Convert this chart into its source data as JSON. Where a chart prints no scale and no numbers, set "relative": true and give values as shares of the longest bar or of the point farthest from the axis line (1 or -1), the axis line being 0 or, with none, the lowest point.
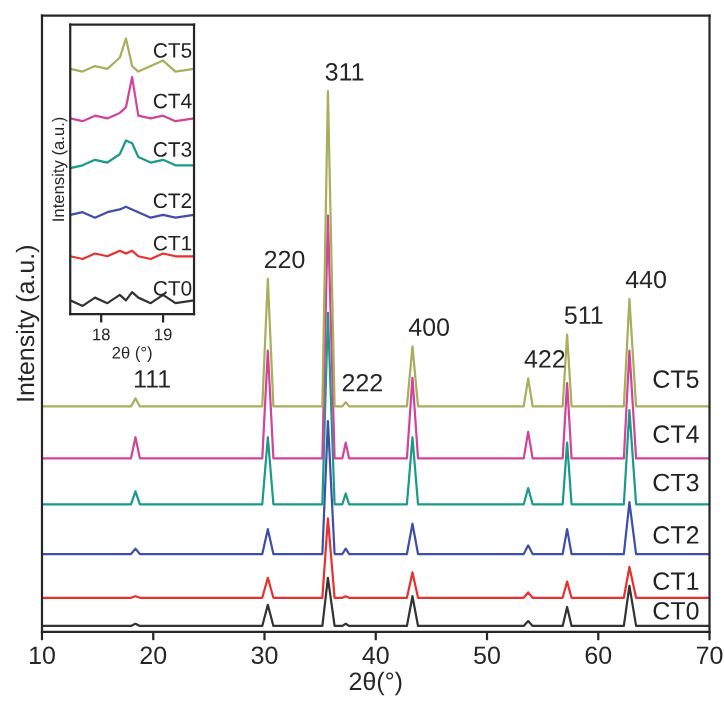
{
  "chart_data": [
    {
      "type": "line",
      "relative": true,
      "xlabel": "2θ(°)",
      "ylabel": "Intensity (a.u.)",
      "xlim": [
        10,
        70
      ],
      "xticks": [
        10,
        20,
        30,
        40,
        50,
        60,
        70
      ],
      "tick_labels": "x",
      "x": [
        10,
        18.0,
        18.4,
        18.8,
        29.8,
        30.3,
        30.8,
        35.2,
        35.7,
        36.3,
        37.0,
        37.3,
        37.6,
        42.8,
        43.3,
        43.8,
        53.3,
        53.7,
        54.1,
        56.8,
        57.2,
        57.6,
        62.3,
        62.8,
        63.4,
        70
      ],
      "series": [
        {
          "name": "CT0",
          "color": "#333333",
          "values": [
            0.011,
            0.011,
            0.015,
            0.011,
            0.011,
            0.05,
            0.011,
            0.011,
            0.1,
            0.011,
            0.011,
            0.015,
            0.011,
            0.011,
            0.066,
            0.011,
            0.011,
            0.02,
            0.011,
            0.011,
            0.046,
            0.011,
            0.011,
            0.085,
            0.011,
            0.011
          ]
        },
        {
          "name": "CT1",
          "color": "#e8302e",
          "values": [
            0.063,
            0.063,
            0.066,
            0.063,
            0.063,
            0.1,
            0.063,
            0.063,
            0.21,
            0.063,
            0.063,
            0.066,
            0.063,
            0.063,
            0.11,
            0.063,
            0.063,
            0.073,
            0.063,
            0.063,
            0.093,
            0.063,
            0.063,
            0.12,
            0.063,
            0.063
          ]
        },
        {
          "name": "CT2",
          "color": "#3e4fa8",
          "values": [
            0.144,
            0.144,
            0.154,
            0.144,
            0.144,
            0.19,
            0.144,
            0.144,
            0.39,
            0.144,
            0.144,
            0.154,
            0.144,
            0.144,
            0.2,
            0.144,
            0.144,
            0.16,
            0.144,
            0.144,
            0.19,
            0.144,
            0.144,
            0.24,
            0.144,
            0.144
          ]
        },
        {
          "name": "CT3",
          "color": "#1a9a8a",
          "values": [
            0.236,
            0.236,
            0.26,
            0.236,
            0.236,
            0.36,
            0.236,
            0.236,
            0.59,
            0.236,
            0.236,
            0.256,
            0.236,
            0.236,
            0.36,
            0.236,
            0.236,
            0.266,
            0.236,
            0.236,
            0.35,
            0.236,
            0.236,
            0.41,
            0.236,
            0.236
          ]
        },
        {
          "name": "CT4",
          "color": "#d0449a",
          "values": [
            0.321,
            0.321,
            0.36,
            0.321,
            0.321,
            0.52,
            0.321,
            0.321,
            0.77,
            0.321,
            0.321,
            0.35,
            0.321,
            0.321,
            0.47,
            0.321,
            0.321,
            0.37,
            0.321,
            0.321,
            0.46,
            0.321,
            0.321,
            0.52,
            0.321,
            0.321
          ]
        },
        {
          "name": "CT5",
          "color": "#a8ae5a",
          "values": [
            0.417,
            0.417,
            0.432,
            0.417,
            0.417,
            0.653,
            0.417,
            0.417,
            1.0,
            0.417,
            0.417,
            0.425,
            0.417,
            0.417,
            0.528,
            0.417,
            0.417,
            0.469,
            0.417,
            0.417,
            0.55,
            0.417,
            0.417,
            0.616,
            0.417,
            0.417
          ]
        }
      ],
      "annotations": [
        {
          "text": "111",
          "x": 18.4,
          "y": 0.432
        },
        {
          "text": "220",
          "x": 30.3,
          "y": 0.653
        },
        {
          "text": "311",
          "x": 35.7,
          "y": 1.0
        },
        {
          "text": "222",
          "x": 37.3,
          "y": 0.425
        },
        {
          "text": "400",
          "x": 43.3,
          "y": 0.528
        },
        {
          "text": "422",
          "x": 53.7,
          "y": 0.469
        },
        {
          "text": "511",
          "x": 57.2,
          "y": 0.55
        },
        {
          "text": "440",
          "x": 62.8,
          "y": 0.616
        }
      ]
    },
    {
      "type": "line",
      "relative": true,
      "xlabel": "2θ (°)",
      "ylabel": "Intensity (a.u.)",
      "xlim": [
        17.5,
        19.5
      ],
      "xticks": [
        18,
        19
      ],
      "tick_labels": "x",
      "x": [
        17.5,
        17.7,
        17.9,
        18.1,
        18.3,
        18.4,
        18.5,
        18.6,
        18.8,
        19.0,
        19.2,
        19.5
      ],
      "series": [
        {
          "name": "CT0",
          "color": "#333333",
          "values": [
            0.05,
            0.03,
            0.06,
            0.04,
            0.07,
            0.05,
            0.08,
            0.06,
            0.04,
            0.07,
            0.04,
            0.05
          ]
        },
        {
          "name": "CT1",
          "color": "#e8302e",
          "values": [
            0.21,
            0.2,
            0.22,
            0.21,
            0.23,
            0.22,
            0.23,
            0.21,
            0.2,
            0.22,
            0.21,
            0.21
          ]
        },
        {
          "name": "CT2",
          "color": "#3e4fa8",
          "values": [
            0.36,
            0.37,
            0.35,
            0.37,
            0.38,
            0.39,
            0.38,
            0.37,
            0.35,
            0.36,
            0.35,
            0.36
          ]
        },
        {
          "name": "CT3",
          "color": "#1a9a8a",
          "values": [
            0.53,
            0.54,
            0.56,
            0.55,
            0.58,
            0.63,
            0.62,
            0.57,
            0.55,
            0.56,
            0.54,
            0.54
          ]
        },
        {
          "name": "CT4",
          "color": "#d0449a",
          "values": [
            0.71,
            0.7,
            0.72,
            0.71,
            0.73,
            0.75,
            0.86,
            0.72,
            0.71,
            0.72,
            0.7,
            0.71
          ]
        },
        {
          "name": "CT5",
          "color": "#a8ae5a",
          "values": [
            0.89,
            0.88,
            0.9,
            0.89,
            0.93,
            1.0,
            0.9,
            0.88,
            0.9,
            0.92,
            0.88,
            0.89
          ]
        }
      ]
    }
  ]
}
